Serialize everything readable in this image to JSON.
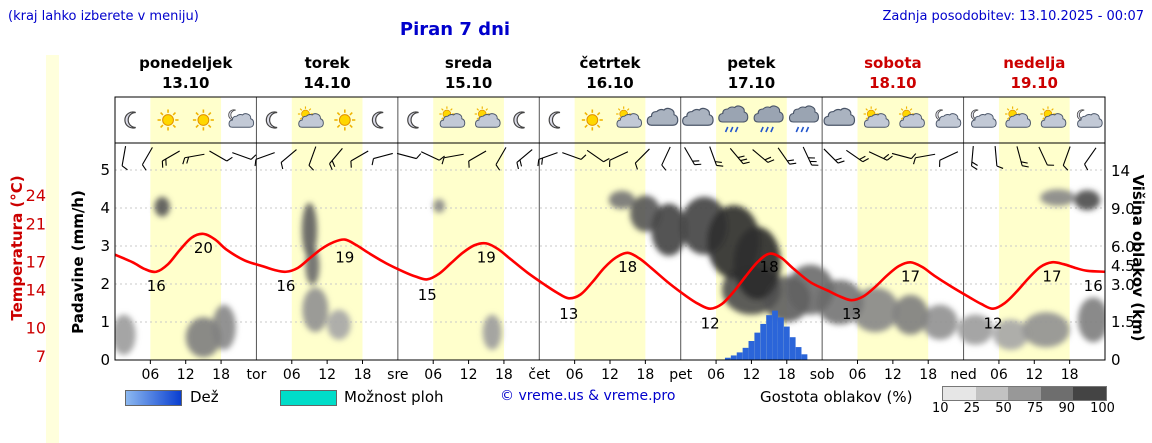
{
  "header": {
    "note": "(kraj lahko izberete v meniju)",
    "title": "Piran 7 dni",
    "last_update": "Zadnja posodobitev: 13.10.2025 - 00:07"
  },
  "axes": {
    "temp_label": "Temperatura (°C)",
    "precip_label": "Padavine (mm/h)",
    "cloud_label": "Višina oblakov (km)",
    "temp_ticks": [
      24,
      21,
      17,
      14,
      10,
      7
    ],
    "precip_ticks": [
      5,
      4,
      3,
      2,
      1,
      0
    ],
    "cloud_ticks": [
      {
        "label": "14",
        "km": 14
      },
      {
        "label": "9.0",
        "km": 9
      },
      {
        "label": "6.0",
        "km": 6
      },
      {
        "label": "4.5",
        "km": 4.5
      },
      {
        "label": "3.0",
        "km": 3
      },
      {
        "label": "1.5",
        "km": 1.5
      },
      {
        "label": "0",
        "km": 0
      }
    ],
    "hour_labels": [
      "06",
      "12",
      "18"
    ],
    "day_abbrevs": [
      "tor",
      "sre",
      "čet",
      "pet",
      "sob",
      "ned"
    ]
  },
  "days": [
    {
      "name": "ponedeljek",
      "date": "13.10",
      "color": "#000000"
    },
    {
      "name": "torek",
      "date": "14.10",
      "color": "#000000"
    },
    {
      "name": "sreda",
      "date": "15.10",
      "color": "#000000"
    },
    {
      "name": "četrtek",
      "date": "16.10",
      "color": "#000000"
    },
    {
      "name": "petek",
      "date": "17.10",
      "color": "#000000"
    },
    {
      "name": "sobota",
      "date": "18.10",
      "color": "#cc0000"
    },
    {
      "name": "nedelja",
      "date": "19.10",
      "color": "#cc0000"
    }
  ],
  "icons": [
    "moon",
    "sun",
    "sun",
    "moon-cloud",
    "moon",
    "sun-cloud",
    "sun",
    "moon",
    "moon",
    "sun-cloud",
    "sun-cloud",
    "moon",
    "moon",
    "sun",
    "sun-cloud",
    "cloud",
    "cloud",
    "cloud-rain",
    "cloud-rain",
    "cloud-rain",
    "cloud",
    "sun-cloud",
    "sun-cloud",
    "moon-cloud",
    "moon-cloud",
    "sun-cloud",
    "sun-cloud",
    "moon-cloud"
  ],
  "legend": {
    "rain_label": "Dež",
    "shower_label": "Možnost ploh",
    "copyright": "© vreme.us & vreme.pro",
    "cloud_density_label": "Gostota oblakov (%)",
    "density_scale": [
      "10",
      "25",
      "50",
      "75",
      "90",
      "100"
    ],
    "density_colors": [
      "#e6e6e6",
      "#c2c2c2",
      "#989898",
      "#6e6e6e",
      "#444444"
    ]
  },
  "colors": {
    "accent_blue": "#0000cc",
    "weekend_red": "#cc0000",
    "temp_curve": "#ff0000",
    "day_band": "#ffffcc",
    "rain_bar": "#2b65d9",
    "grid": "#c8c8c8",
    "frame": "#000000"
  },
  "chart_data": {
    "type": "line",
    "title": "Piran 7 dni",
    "x_axis": {
      "unit": "hours",
      "range": [
        0,
        168
      ],
      "tick_hours": [
        6,
        12,
        18
      ],
      "day_boundaries_hours": [
        24,
        48,
        72,
        96,
        120,
        144
      ],
      "day_band_hours": [
        6,
        18
      ]
    },
    "temperature": {
      "name": "Temperatura",
      "unit": "°C",
      "axis_range": [
        7,
        24
      ],
      "color": "#ff0000",
      "points": [
        [
          0,
          17.8
        ],
        [
          3,
          17.0
        ],
        [
          5,
          16.3
        ],
        [
          7,
          16.0
        ],
        [
          9,
          16.8
        ],
        [
          11,
          18.3
        ],
        [
          13,
          19.6
        ],
        [
          15,
          20.0
        ],
        [
          17,
          19.4
        ],
        [
          19,
          18.3
        ],
        [
          22,
          17.2
        ],
        [
          25,
          16.6
        ],
        [
          27,
          16.2
        ],
        [
          29,
          16.0
        ],
        [
          31,
          16.4
        ],
        [
          33,
          17.4
        ],
        [
          35,
          18.4
        ],
        [
          37,
          19.1
        ],
        [
          39,
          19.4
        ],
        [
          41,
          18.8
        ],
        [
          43,
          18.0
        ],
        [
          46,
          16.9
        ],
        [
          49,
          16.0
        ],
        [
          51,
          15.5
        ],
        [
          53,
          15.2
        ],
        [
          55,
          15.8
        ],
        [
          57,
          16.9
        ],
        [
          59,
          18.0
        ],
        [
          61,
          18.8
        ],
        [
          63,
          19.0
        ],
        [
          65,
          18.4
        ],
        [
          67,
          17.4
        ],
        [
          70,
          15.9
        ],
        [
          73,
          14.6
        ],
        [
          75,
          13.8
        ],
        [
          77,
          13.2
        ],
        [
          79,
          13.6
        ],
        [
          81,
          14.9
        ],
        [
          83,
          16.4
        ],
        [
          85,
          17.5
        ],
        [
          87,
          18.0
        ],
        [
          89,
          17.4
        ],
        [
          91,
          16.4
        ],
        [
          94,
          14.8
        ],
        [
          97,
          13.4
        ],
        [
          99,
          12.6
        ],
        [
          101,
          12.1
        ],
        [
          103,
          12.6
        ],
        [
          105,
          13.9
        ],
        [
          107,
          15.5
        ],
        [
          109,
          17.0
        ],
        [
          111,
          17.9
        ],
        [
          113,
          17.5
        ],
        [
          115,
          16.4
        ],
        [
          118,
          14.9
        ],
        [
          121,
          14.0
        ],
        [
          123,
          13.4
        ],
        [
          125,
          13.0
        ],
        [
          127,
          13.4
        ],
        [
          129,
          14.4
        ],
        [
          131,
          15.6
        ],
        [
          133,
          16.6
        ],
        [
          135,
          17.0
        ],
        [
          137,
          16.5
        ],
        [
          139,
          15.6
        ],
        [
          142,
          14.4
        ],
        [
          145,
          13.3
        ],
        [
          147,
          12.6
        ],
        [
          149,
          12.1
        ],
        [
          151,
          12.7
        ],
        [
          153,
          13.9
        ],
        [
          155,
          15.3
        ],
        [
          157,
          16.5
        ],
        [
          159,
          17.0
        ],
        [
          161,
          16.8
        ],
        [
          163,
          16.4
        ],
        [
          165,
          16.1
        ],
        [
          168,
          16.0
        ]
      ],
      "labels": [
        {
          "h": 7,
          "v": 16
        },
        {
          "h": 15,
          "v": 20
        },
        {
          "h": 29,
          "v": 16
        },
        {
          "h": 39,
          "v": 19
        },
        {
          "h": 53,
          "v": 15
        },
        {
          "h": 63,
          "v": 19
        },
        {
          "h": 77,
          "v": 13
        },
        {
          "h": 87,
          "v": 18
        },
        {
          "h": 101,
          "v": 12
        },
        {
          "h": 111,
          "v": 18
        },
        {
          "h": 125,
          "v": 13
        },
        {
          "h": 135,
          "v": 17
        },
        {
          "h": 149,
          "v": 12
        },
        {
          "h": 159,
          "v": 17
        },
        {
          "h": 166,
          "v": 16
        }
      ]
    },
    "precipitation": {
      "name": "Padavine",
      "unit": "mm/h",
      "axis_range": [
        0,
        5
      ],
      "color": "#2b65d9",
      "bars": [
        [
          104,
          0.06
        ],
        [
          105,
          0.12
        ],
        [
          106,
          0.2
        ],
        [
          107,
          0.32
        ],
        [
          108,
          0.5
        ],
        [
          109,
          0.72
        ],
        [
          110,
          0.95
        ],
        [
          111,
          1.18
        ],
        [
          112,
          1.3
        ],
        [
          113,
          1.12
        ],
        [
          114,
          0.88
        ],
        [
          115,
          0.6
        ],
        [
          116,
          0.34
        ],
        [
          117,
          0.15
        ]
      ]
    },
    "cloud_height_axis": {
      "unit": "km",
      "ticks": [
        0,
        1.5,
        3,
        4.5,
        6,
        9,
        14
      ]
    },
    "cloud_layers": [
      {
        "h": 1.5,
        "km": 1.0,
        "rh": 2,
        "rkm": 0.8,
        "d": 0.35
      },
      {
        "h": 8,
        "km": 9.5,
        "rh": 1.3,
        "rkm": 1.1,
        "d": 0.7
      },
      {
        "h": 15,
        "km": 0.9,
        "rh": 3,
        "rkm": 0.8,
        "d": 0.5
      },
      {
        "h": 18.5,
        "km": 1.3,
        "rh": 2,
        "rkm": 0.9,
        "d": 0.45
      },
      {
        "h": 33,
        "km": 7.5,
        "rh": 1.3,
        "rkm": 2.3,
        "d": 0.65
      },
      {
        "h": 33.5,
        "km": 4.5,
        "rh": 1.2,
        "rkm": 1.5,
        "d": 0.6
      },
      {
        "h": 34,
        "km": 2.0,
        "rh": 2.2,
        "rkm": 0.9,
        "d": 0.4
      },
      {
        "h": 38,
        "km": 1.4,
        "rh": 2,
        "rkm": 0.6,
        "d": 0.3
      },
      {
        "h": 55,
        "km": 9.5,
        "rh": 1,
        "rkm": 0.8,
        "d": 0.45
      },
      {
        "h": 64,
        "km": 1.1,
        "rh": 1.6,
        "rkm": 0.7,
        "d": 0.35
      },
      {
        "h": 86,
        "km": 10.2,
        "rh": 2.2,
        "rkm": 1.2,
        "d": 0.55
      },
      {
        "h": 90,
        "km": 9.0,
        "rh": 2.6,
        "rkm": 1.8,
        "d": 0.7
      },
      {
        "h": 94,
        "km": 7.5,
        "rh": 3,
        "rkm": 2.2,
        "d": 0.8
      },
      {
        "h": 100,
        "km": 8.0,
        "rh": 4,
        "rkm": 2.6,
        "d": 0.8
      },
      {
        "h": 105,
        "km": 6.5,
        "rh": 4.5,
        "rkm": 3.0,
        "d": 0.9
      },
      {
        "h": 109,
        "km": 5.0,
        "rh": 4,
        "rkm": 2.6,
        "d": 0.92
      },
      {
        "h": 108,
        "km": 3.2,
        "rh": 5,
        "rkm": 1.4,
        "d": 0.75
      },
      {
        "h": 114,
        "km": 2.6,
        "rh": 4,
        "rkm": 1.1,
        "d": 0.65
      },
      {
        "h": 118,
        "km": 3.2,
        "rh": 4,
        "rkm": 1.4,
        "d": 0.6
      },
      {
        "h": 123,
        "km": 2.4,
        "rh": 4,
        "rkm": 1.0,
        "d": 0.55
      },
      {
        "h": 129,
        "km": 2.0,
        "rh": 4,
        "rkm": 0.9,
        "d": 0.45
      },
      {
        "h": 135,
        "km": 1.8,
        "rh": 3,
        "rkm": 0.8,
        "d": 0.5
      },
      {
        "h": 140,
        "km": 1.5,
        "rh": 3,
        "rkm": 0.7,
        "d": 0.4
      },
      {
        "h": 146,
        "km": 1.2,
        "rh": 3,
        "rkm": 0.6,
        "d": 0.35
      },
      {
        "h": 152,
        "km": 1.0,
        "rh": 3,
        "rkm": 0.6,
        "d": 0.3
      },
      {
        "h": 158,
        "km": 1.2,
        "rh": 4,
        "rkm": 0.7,
        "d": 0.4
      },
      {
        "h": 160,
        "km": 10.5,
        "rh": 3,
        "rkm": 1.1,
        "d": 0.45
      },
      {
        "h": 165,
        "km": 10.2,
        "rh": 2.2,
        "rkm": 1.3,
        "d": 0.75
      },
      {
        "h": 166,
        "km": 1.6,
        "rh": 2.6,
        "rkm": 0.9,
        "d": 0.5
      }
    ],
    "wind_barbs": [
      [
        100,
        1
      ],
      [
        120,
        1
      ],
      [
        150,
        2
      ],
      [
        170,
        2
      ],
      [
        30,
        1
      ],
      [
        20,
        1
      ],
      [
        160,
        1
      ],
      [
        140,
        1
      ],
      [
        110,
        1
      ],
      [
        130,
        2
      ],
      [
        150,
        1
      ],
      [
        165,
        1
      ],
      [
        15,
        1
      ],
      [
        25,
        1
      ],
      [
        170,
        1
      ],
      [
        150,
        1
      ],
      [
        120,
        1
      ],
      [
        140,
        2
      ],
      [
        160,
        2
      ],
      [
        20,
        1
      ],
      [
        35,
        1
      ],
      [
        155,
        1
      ],
      [
        135,
        1
      ],
      [
        115,
        1
      ],
      [
        60,
        2
      ],
      [
        70,
        2
      ],
      [
        50,
        3
      ],
      [
        40,
        2
      ],
      [
        55,
        2
      ],
      [
        65,
        3
      ],
      [
        45,
        2
      ],
      [
        35,
        2
      ],
      [
        25,
        2
      ],
      [
        15,
        1
      ],
      [
        170,
        1
      ],
      [
        155,
        1
      ],
      [
        95,
        2
      ],
      [
        85,
        1
      ],
      [
        75,
        2
      ],
      [
        65,
        1
      ],
      [
        110,
        1
      ],
      [
        125,
        1
      ]
    ]
  }
}
